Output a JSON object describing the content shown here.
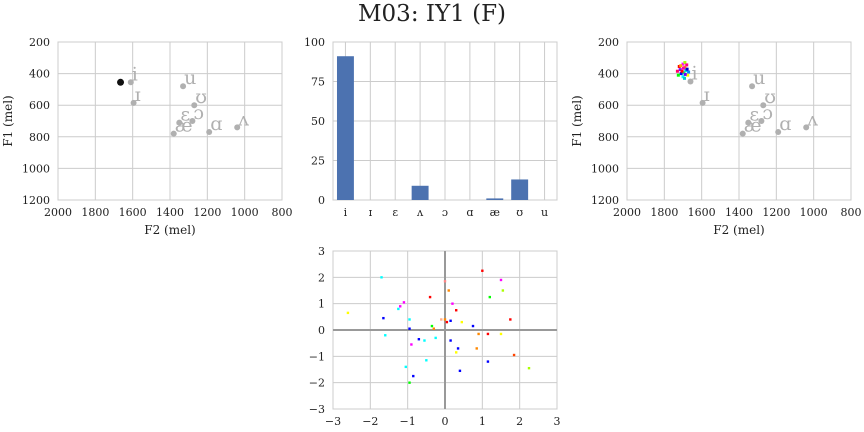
{
  "figure": {
    "title": "M03: IY1 (F)"
  },
  "colors": {
    "grid": "#cccccc",
    "axes_border": "#cccccc",
    "vowel_gray": "#b0b0b0",
    "bar": "#4c72b0",
    "current_point": "#111111",
    "zero_line": "#999999"
  },
  "chart_data": [
    {
      "id": "vowel_space_left",
      "type": "scatter",
      "xlabel": "F2 (mel)",
      "ylabel": "F1 (mel)",
      "xlim": [
        2000,
        800
      ],
      "ylim": [
        1200,
        200
      ],
      "xticks": [
        2000,
        1800,
        1600,
        1400,
        1200,
        1000,
        800
      ],
      "yticks": [
        200,
        400,
        600,
        800,
        1000,
        1200
      ],
      "grid": true,
      "vowels": [
        {
          "symbol": "i",
          "x": 1610,
          "y": 455
        },
        {
          "symbol": "ɪ",
          "x": 1595,
          "y": 585
        },
        {
          "symbol": "u",
          "x": 1330,
          "y": 480
        },
        {
          "symbol": "ʊ",
          "x": 1270,
          "y": 600
        },
        {
          "symbol": "ɛ",
          "x": 1350,
          "y": 710
        },
        {
          "symbol": "ɔ",
          "x": 1280,
          "y": 700
        },
        {
          "symbol": "æ",
          "x": 1380,
          "y": 780
        },
        {
          "symbol": "ɑ",
          "x": 1190,
          "y": 770
        },
        {
          "symbol": "ʌ",
          "x": 1040,
          "y": 740
        }
      ],
      "highlight": {
        "x": 1665,
        "y": 455
      }
    },
    {
      "id": "classification_bars",
      "type": "bar",
      "categories": [
        "i",
        "ɪ",
        "ɛ",
        "ʌ",
        "ɔ",
        "ɑ",
        "æ",
        "ʊ",
        "u"
      ],
      "values": [
        91,
        0,
        0,
        9,
        0,
        0,
        1,
        13,
        0
      ],
      "ylim": [
        0,
        100
      ],
      "yticks": [
        0,
        25,
        50,
        75,
        100
      ],
      "grid": true
    },
    {
      "id": "vowel_space_right",
      "type": "scatter",
      "xlabel": "F2 (mel)",
      "ylabel": "F1 (mel)",
      "xlim": [
        2000,
        800
      ],
      "ylim": [
        1200,
        200
      ],
      "xticks": [
        2000,
        1800,
        1600,
        1400,
        1200,
        1000,
        800
      ],
      "yticks": [
        200,
        400,
        600,
        800,
        1000,
        1200
      ],
      "grid": true,
      "vowels": [
        {
          "symbol": "i",
          "x": 1660,
          "y": 450
        },
        {
          "symbol": "ɪ",
          "x": 1595,
          "y": 585
        },
        {
          "symbol": "u",
          "x": 1330,
          "y": 480
        },
        {
          "symbol": "ʊ",
          "x": 1270,
          "y": 600
        },
        {
          "symbol": "ɛ",
          "x": 1350,
          "y": 710
        },
        {
          "symbol": "ɔ",
          "x": 1280,
          "y": 700
        },
        {
          "symbol": "æ",
          "x": 1380,
          "y": 780
        },
        {
          "symbol": "ɑ",
          "x": 1190,
          "y": 770
        },
        {
          "symbol": "ʌ",
          "x": 1040,
          "y": 740
        }
      ],
      "cluster": [
        {
          "x": 1720,
          "y": 355,
          "c": "#ff0000"
        },
        {
          "x": 1700,
          "y": 340,
          "c": "#ff00ff"
        },
        {
          "x": 1690,
          "y": 330,
          "c": "#aaff00"
        },
        {
          "x": 1685,
          "y": 380,
          "c": "#00ccff"
        },
        {
          "x": 1710,
          "y": 400,
          "c": "#0000ff"
        },
        {
          "x": 1695,
          "y": 395,
          "c": "#00ff66"
        },
        {
          "x": 1675,
          "y": 410,
          "c": "#ffff00"
        },
        {
          "x": 1700,
          "y": 420,
          "c": "#00ffff"
        },
        {
          "x": 1690,
          "y": 360,
          "c": "#ff8800"
        },
        {
          "x": 1715,
          "y": 375,
          "c": "#8800ff"
        },
        {
          "x": 1680,
          "y": 345,
          "c": "#ff0088"
        },
        {
          "x": 1670,
          "y": 390,
          "c": "#0088ff"
        },
        {
          "x": 1725,
          "y": 410,
          "c": "#00ff00"
        },
        {
          "x": 1705,
          "y": 385,
          "c": "#ff0000"
        },
        {
          "x": 1688,
          "y": 405,
          "c": "#6600ff"
        },
        {
          "x": 1698,
          "y": 365,
          "c": "#ff00aa"
        },
        {
          "x": 1678,
          "y": 372,
          "c": "#0000cc"
        },
        {
          "x": 1712,
          "y": 350,
          "c": "#ffaa00"
        },
        {
          "x": 1692,
          "y": 430,
          "c": "#00cccc"
        },
        {
          "x": 1730,
          "y": 385,
          "c": "#ff0066"
        }
      ]
    },
    {
      "id": "scatter_random",
      "type": "scatter",
      "xlim": [
        -3,
        3
      ],
      "ylim": [
        -3,
        3
      ],
      "xticks": [
        -3,
        -2,
        -1,
        0,
        1,
        2,
        3
      ],
      "yticks": [
        -3,
        -2,
        -1,
        0,
        1,
        2,
        3
      ],
      "grid": true,
      "points": [
        {
          "x": -1.7,
          "y": 2.0,
          "c": "#00ffff"
        },
        {
          "x": -2.6,
          "y": 0.65,
          "c": "#ffff00"
        },
        {
          "x": -1.65,
          "y": 0.45,
          "c": "#0000ff"
        },
        {
          "x": -1.6,
          "y": -0.2,
          "c": "#00ffff"
        },
        {
          "x": -1.2,
          "y": 0.9,
          "c": "#ff00ff"
        },
        {
          "x": -1.1,
          "y": 1.05,
          "c": "#ff00ff"
        },
        {
          "x": -1.25,
          "y": 0.8,
          "c": "#00ffff"
        },
        {
          "x": -0.95,
          "y": 0.4,
          "c": "#00ffff"
        },
        {
          "x": -0.95,
          "y": 0.05,
          "c": "#0000ff"
        },
        {
          "x": -0.9,
          "y": -0.55,
          "c": "#ff00ff"
        },
        {
          "x": -0.7,
          "y": -0.35,
          "c": "#0000ff"
        },
        {
          "x": -0.55,
          "y": -0.4,
          "c": "#00ffff"
        },
        {
          "x": -0.5,
          "y": -1.15,
          "c": "#00ffff"
        },
        {
          "x": -1.05,
          "y": -1.4,
          "c": "#00ffff"
        },
        {
          "x": -0.85,
          "y": -1.75,
          "c": "#0000ff"
        },
        {
          "x": -0.95,
          "y": -2.0,
          "c": "#00ff00"
        },
        {
          "x": -0.4,
          "y": 1.25,
          "c": "#ff0000"
        },
        {
          "x": -0.35,
          "y": 0.15,
          "c": "#00ff00"
        },
        {
          "x": -0.3,
          "y": 0.05,
          "c": "#ff8800"
        },
        {
          "x": -0.25,
          "y": -0.3,
          "c": "#00ffff"
        },
        {
          "x": -0.1,
          "y": 0.4,
          "c": "#ffaa88"
        },
        {
          "x": 0.0,
          "y": 0.4,
          "c": "#ff8800"
        },
        {
          "x": 0.0,
          "y": 1.85,
          "c": "#ff8888"
        },
        {
          "x": 0.1,
          "y": 1.5,
          "c": "#ff8800"
        },
        {
          "x": 0.05,
          "y": 0.3,
          "c": "#ff0000"
        },
        {
          "x": 0.15,
          "y": 0.35,
          "c": "#0000ff"
        },
        {
          "x": 0.15,
          "y": -0.4,
          "c": "#0000ff"
        },
        {
          "x": 0.2,
          "y": 1.0,
          "c": "#ff00ff"
        },
        {
          "x": 0.3,
          "y": 0.75,
          "c": "#ff0000"
        },
        {
          "x": 0.35,
          "y": -0.7,
          "c": "#0000ff"
        },
        {
          "x": 0.3,
          "y": -0.85,
          "c": "#ffff00"
        },
        {
          "x": 0.4,
          "y": -1.55,
          "c": "#0000ff"
        },
        {
          "x": 0.45,
          "y": 0.3,
          "c": "#ffff00"
        },
        {
          "x": 0.75,
          "y": 0.15,
          "c": "#0000ff"
        },
        {
          "x": 0.85,
          "y": -0.7,
          "c": "#ff8800"
        },
        {
          "x": 0.9,
          "y": -0.15,
          "c": "#ff8800"
        },
        {
          "x": 1.0,
          "y": 2.25,
          "c": "#ff0000"
        },
        {
          "x": 1.15,
          "y": -0.15,
          "c": "#ff0000"
        },
        {
          "x": 1.2,
          "y": 1.25,
          "c": "#00ff00"
        },
        {
          "x": 1.15,
          "y": -1.2,
          "c": "#0000ff"
        },
        {
          "x": 1.5,
          "y": 1.9,
          "c": "#ff00ff"
        },
        {
          "x": 1.55,
          "y": 1.5,
          "c": "#aaff00"
        },
        {
          "x": 1.5,
          "y": -0.15,
          "c": "#ffff00"
        },
        {
          "x": 1.75,
          "y": 0.4,
          "c": "#ff0000"
        },
        {
          "x": 1.85,
          "y": -0.95,
          "c": "#ff4400"
        },
        {
          "x": 2.25,
          "y": -1.45,
          "c": "#aaff00"
        }
      ]
    }
  ]
}
